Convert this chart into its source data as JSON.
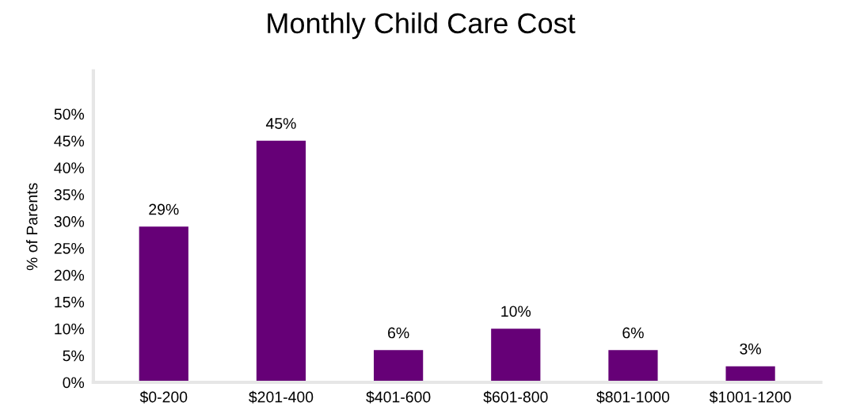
{
  "chart_data": {
    "type": "bar",
    "title": "Monthly Child Care Cost",
    "ylabel": "% of Parents",
    "categories": [
      "$0-200",
      "$201-400",
      "$401-600",
      "$601-800",
      "$801-1000",
      "$1001-1200"
    ],
    "values": [
      29,
      45,
      6,
      10,
      6,
      3
    ],
    "color": "#660077",
    "ylim": [
      0,
      58
    ],
    "yticks": [
      {
        "value": 0,
        "label": "0%"
      },
      {
        "value": 5,
        "label": "5%"
      },
      {
        "value": 10,
        "label": "10%"
      },
      {
        "value": 15,
        "label": "15%"
      },
      {
        "value": 20,
        "label": "20%"
      },
      {
        "value": 25,
        "label": "25%"
      },
      {
        "value": 30,
        "label": "30%"
      },
      {
        "value": 35,
        "label": "35%"
      },
      {
        "value": 40,
        "label": "40%"
      },
      {
        "value": 45,
        "label": "45%"
      },
      {
        "value": 50,
        "label": "50%"
      }
    ],
    "value_labels": [
      "29%",
      "45%",
      "6%",
      "10%",
      "6%",
      "3%"
    ],
    "grid": false,
    "legend": false
  }
}
